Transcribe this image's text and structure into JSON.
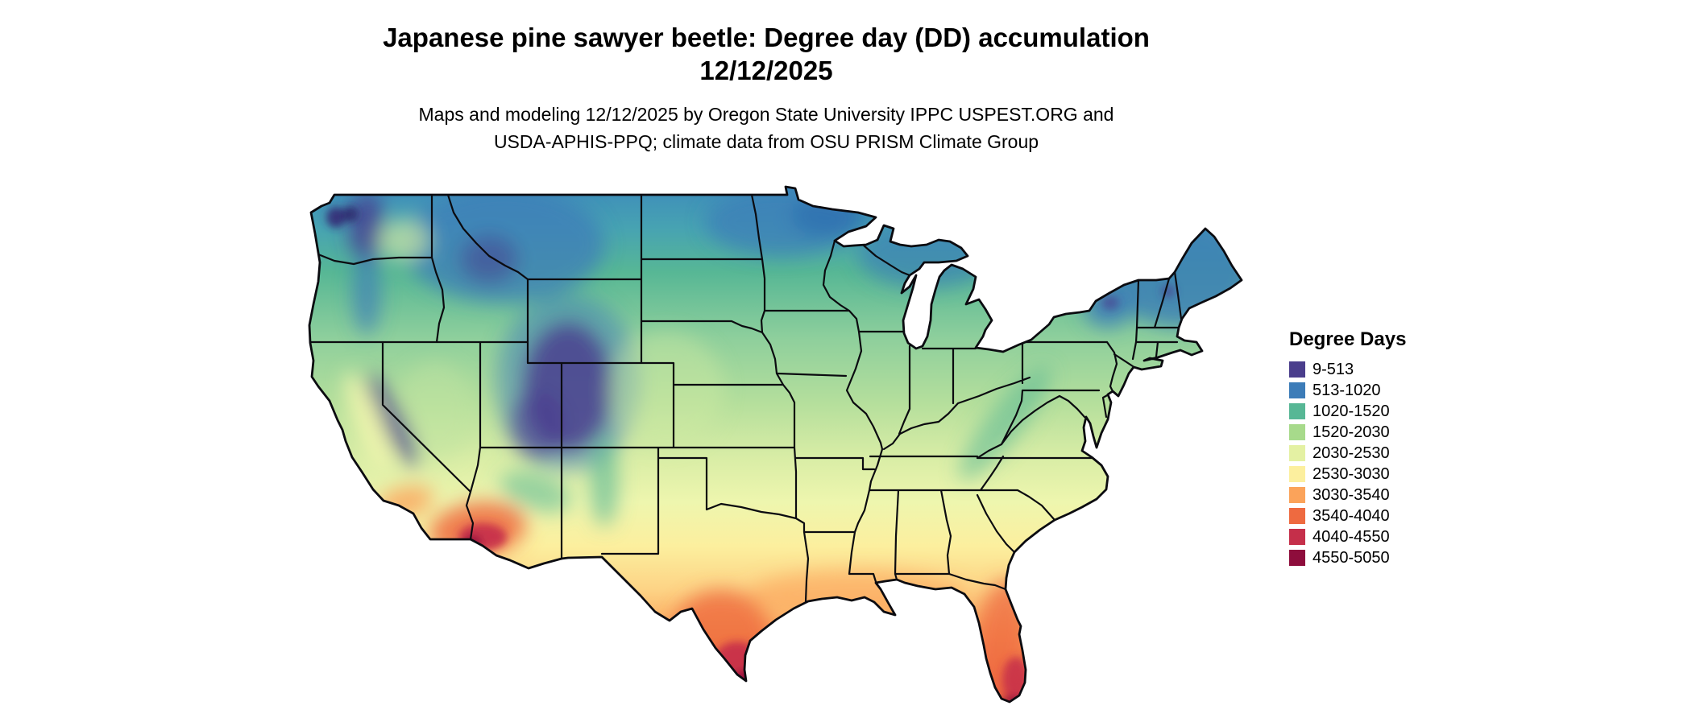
{
  "title": {
    "line1": "Japanese pine sawyer beetle: Degree day (DD) accumulation",
    "line2": "12/12/2025"
  },
  "subtitle": {
    "line1": "Maps and modeling 12/12/2025 by Oregon State University IPPC USPEST.ORG and",
    "line2": "USDA-APHIS-PPQ; climate data from OSU PRISM Climate Group"
  },
  "legend": {
    "title": "Degree Days",
    "items": [
      {
        "range": "9-513",
        "color": "#4a3e8c"
      },
      {
        "range": "513-1020",
        "color": "#3c7cb8"
      },
      {
        "range": "1020-1520",
        "color": "#57b795"
      },
      {
        "range": "1520-2030",
        "color": "#a7da8b"
      },
      {
        "range": "2030-2530",
        "color": "#e4f1a3"
      },
      {
        "range": "2530-3030",
        "color": "#fcef9e"
      },
      {
        "range": "3030-3540",
        "color": "#fba35a"
      },
      {
        "range": "3540-4040",
        "color": "#ee6a40"
      },
      {
        "range": "4040-4550",
        "color": "#c52f4a"
      },
      {
        "range": "4550-5050",
        "color": "#8e0d3c"
      }
    ]
  }
}
